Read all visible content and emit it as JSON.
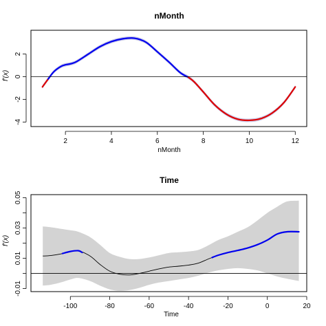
{
  "chart_data": [
    {
      "type": "line",
      "title": "nMonth",
      "xlabel": "nMonth",
      "ylabel": "f'(x)",
      "xlim": [
        0.5,
        12.5
      ],
      "ylim": [
        -4.4,
        4.1
      ],
      "xticks": [
        2,
        4,
        6,
        8,
        10,
        12
      ],
      "xtick_labels": [
        "2",
        "4",
        "6",
        "8",
        "10",
        "12"
      ],
      "yticks": [
        -4,
        -2,
        0,
        2
      ],
      "ytick_labels": [
        "-4",
        "-2",
        "0",
        "2"
      ],
      "reference_line": 0,
      "colors": {
        "positive": "#0000ee",
        "negative": "#dd0000",
        "band": "#c8c8e8",
        "neutral": "#000000"
      },
      "series": [
        {
          "x": [
            1,
            1.25,
            1.5,
            1.8,
            2,
            2.25,
            2.5,
            3,
            3.5,
            4,
            4.5,
            5,
            5.5,
            6,
            6.5,
            7,
            7.35,
            7.6,
            8,
            8.5,
            9,
            9.5,
            10,
            10.5,
            11,
            11.5,
            12
          ],
          "y": [
            -0.9,
            -0.2,
            0.45,
            0.9,
            1.05,
            1.15,
            1.35,
            2.0,
            2.65,
            3.1,
            3.35,
            3.4,
            3.05,
            2.2,
            1.3,
            0.35,
            -0.05,
            -0.45,
            -1.35,
            -2.5,
            -3.3,
            -3.75,
            -3.85,
            -3.7,
            -3.2,
            -2.3,
            -0.9
          ],
          "lower": [
            -1.05,
            -0.35,
            0.3,
            0.75,
            0.9,
            1.0,
            1.2,
            1.85,
            2.5,
            2.95,
            3.2,
            3.25,
            2.9,
            2.05,
            1.15,
            0.2,
            -0.2,
            -0.6,
            -1.5,
            -2.65,
            -3.45,
            -3.9,
            -4.0,
            -3.85,
            -3.35,
            -2.45,
            -1.05
          ],
          "upper": [
            -0.75,
            -0.05,
            0.6,
            1.05,
            1.2,
            1.3,
            1.5,
            2.15,
            2.8,
            3.25,
            3.5,
            3.55,
            3.2,
            2.35,
            1.45,
            0.5,
            0.1,
            -0.3,
            -1.2,
            -2.35,
            -3.15,
            -3.6,
            -3.7,
            -3.55,
            -3.05,
            -2.15,
            -0.75
          ]
        }
      ]
    },
    {
      "type": "line",
      "title": "Time",
      "xlabel": "Time",
      "ylabel": "f'(x)",
      "xlim": [
        -120,
        20
      ],
      "ylim": [
        -0.012,
        0.052
      ],
      "xticks": [
        -100,
        -80,
        -60,
        -40,
        -20,
        0,
        20
      ],
      "xtick_labels": [
        "-100",
        "-80",
        "-60",
        "-40",
        "-20",
        "0",
        "20"
      ],
      "yticks": [
        -0.01,
        0.01,
        0.03,
        0.05
      ],
      "ytick_labels": [
        "-0.01",
        "0.01",
        "0.03",
        "0.05"
      ],
      "yticks_unlabeled": [
        0,
        0.02,
        0.04
      ],
      "reference_line": 0,
      "colors": {
        "positive": "#0000ee",
        "negative": "#dd0000",
        "band": "#d3d3d3",
        "neutral": "#000000"
      },
      "series": [
        {
          "x": [
            -114,
            -110,
            -105,
            -100,
            -96,
            -90,
            -85,
            -80,
            -75,
            -70,
            -65,
            -60,
            -55,
            -50,
            -45,
            -40,
            -35,
            -30,
            -25,
            -20,
            -15,
            -10,
            -5,
            0,
            5,
            10,
            16
          ],
          "y": [
            0.0115,
            0.0118,
            0.0128,
            0.0145,
            0.015,
            0.0115,
            0.006,
            0.0015,
            -0.0005,
            -0.001,
            0.0,
            0.0015,
            0.003,
            0.0042,
            0.0048,
            0.0055,
            0.0068,
            0.0095,
            0.012,
            0.0138,
            0.0152,
            0.0168,
            0.019,
            0.022,
            0.026,
            0.0275,
            0.0275
          ],
          "lower": [
            -0.008,
            -0.0075,
            -0.006,
            -0.004,
            -0.003,
            -0.005,
            -0.008,
            -0.0105,
            -0.0115,
            -0.011,
            -0.0095,
            -0.0075,
            -0.006,
            -0.005,
            -0.004,
            -0.003,
            -0.0015,
            0.0005,
            0.002,
            0.003,
            0.0035,
            0.003,
            0.002,
            0.0,
            -0.002,
            -0.0035,
            -0.005
          ],
          "upper": [
            0.031,
            0.0305,
            0.0295,
            0.0285,
            0.0275,
            0.024,
            0.019,
            0.0135,
            0.011,
            0.0095,
            0.0095,
            0.0105,
            0.012,
            0.0135,
            0.014,
            0.0145,
            0.0155,
            0.0185,
            0.022,
            0.0245,
            0.0275,
            0.0305,
            0.035,
            0.04,
            0.044,
            0.0475,
            0.048
          ]
        }
      ],
      "highlight_ranges": [
        {
          "from": -104,
          "to": -94,
          "color": "positive"
        },
        {
          "from": -28,
          "to": 16,
          "color": "positive"
        }
      ]
    }
  ]
}
